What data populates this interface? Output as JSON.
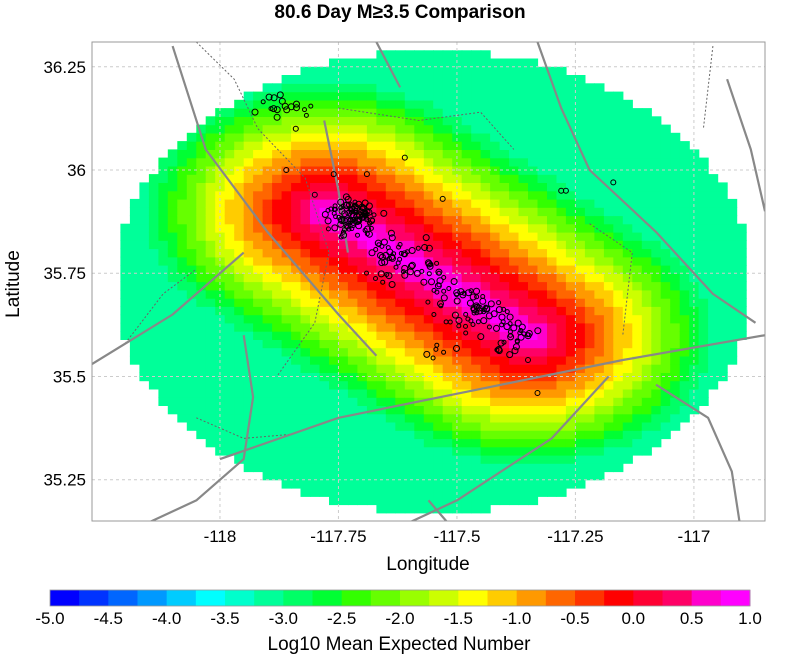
{
  "chart_data": {
    "type": "heatmap",
    "title": "80.6 Day M≥3.5 Comparison",
    "xlabel": "Longitude",
    "ylabel": "Latitude",
    "xlim": [
      -118.27,
      -116.85
    ],
    "ylim": [
      35.15,
      36.31
    ],
    "xticks": [
      -118,
      -117.75,
      -117.5,
      -117.25,
      -117
    ],
    "xtick_labels": [
      "-118",
      "-117.75",
      "-117.5",
      "-117.25",
      "-117"
    ],
    "yticks": [
      35.25,
      35.5,
      35.75,
      36,
      36.25
    ],
    "ytick_labels": [
      "35.25",
      "35.5",
      "35.75",
      "36",
      "36.25"
    ],
    "grid": true,
    "colorbar": {
      "label": "Log10 Mean Expected Number",
      "range": [
        -5.0,
        1.0
      ],
      "tick_values": [
        -5.0,
        -4.5,
        -4.0,
        -3.5,
        -3.0,
        -2.5,
        -2.0,
        -1.5,
        -1.0,
        -0.5,
        0.0,
        0.5,
        1.0
      ],
      "tick_labels": [
        "-5.0",
        "-4.5",
        "-4.0",
        "-3.5",
        "-3.0",
        "-2.5",
        "-2.0",
        "-1.5",
        "-1.0",
        "-0.5",
        "0.0",
        "0.5",
        "1.0"
      ],
      "colors": [
        "#0000ff",
        "#0033ff",
        "#0066ff",
        "#0099ff",
        "#00ccff",
        "#00ffff",
        "#00ffcc",
        "#00ff99",
        "#00ff66",
        "#00ff33",
        "#33ff00",
        "#66ff00",
        "#99ff00",
        "#ccff00",
        "#ffff00",
        "#ffcc00",
        "#ff9900",
        "#ff6600",
        "#ff3300",
        "#ff0000",
        "#ff0033",
        "#ff0066",
        "#ff00cc",
        "#ff00ff"
      ]
    },
    "forecast_region": {
      "center": [
        -117.55,
        35.73
      ],
      "radius_x_deg": 0.67,
      "radius_y_deg": 0.56
    },
    "rupture_trace": [
      [
        -117.77,
        35.9
      ],
      [
        -117.35,
        35.6
      ]
    ],
    "earthquakes_marker": "open black circle",
    "earthquake_clusters": [
      {
        "lon": -117.72,
        "lat": 35.89,
        "n": 80,
        "spread": 0.025
      },
      {
        "lon": -117.62,
        "lat": 35.78,
        "n": 40,
        "spread": 0.04
      },
      {
        "lon": -117.48,
        "lat": 35.66,
        "n": 40,
        "spread": 0.04
      },
      {
        "lon": -117.39,
        "lat": 35.59,
        "n": 20,
        "spread": 0.03
      },
      {
        "lon": -117.88,
        "lat": 36.15,
        "n": 18,
        "spread": 0.03
      },
      {
        "lon": -117.53,
        "lat": 35.56,
        "n": 6,
        "spread": 0.02
      }
    ],
    "earthquakes_isolated": [
      [
        -117.69,
        35.99
      ],
      [
        -117.76,
        35.99
      ],
      [
        -117.8,
        35.94
      ],
      [
        -117.53,
        35.93
      ],
      [
        -117.28,
        35.95
      ],
      [
        -117.27,
        35.95
      ],
      [
        -117.17,
        35.97
      ],
      [
        -117.33,
        35.46
      ],
      [
        -117.35,
        35.54
      ],
      [
        -117.61,
        36.03
      ],
      [
        -117.84,
        36.1
      ],
      [
        -117.86,
        36.0
      ]
    ],
    "fault_lines": [
      [
        [
          -118.1,
          36.3
        ],
        [
          -118.03,
          36.05
        ],
        [
          -117.9,
          35.85
        ],
        [
          -117.75,
          35.65
        ],
        [
          -117.67,
          35.55
        ]
      ],
      [
        [
          -117.78,
          36.12
        ],
        [
          -117.75,
          35.95
        ],
        [
          -117.73,
          35.8
        ]
      ],
      [
        [
          -117.33,
          36.31
        ],
        [
          -117.28,
          36.15
        ],
        [
          -117.22,
          36.0
        ],
        [
          -117.08,
          35.85
        ],
        [
          -116.96,
          35.7
        ],
        [
          -116.87,
          35.63
        ]
      ],
      [
        [
          -118.0,
          35.3
        ],
        [
          -117.75,
          35.4
        ],
        [
          -117.45,
          35.47
        ],
        [
          -117.15,
          35.54
        ],
        [
          -116.85,
          35.6
        ]
      ],
      [
        [
          -118.27,
          35.53
        ],
        [
          -118.1,
          35.65
        ],
        [
          -117.95,
          35.8
        ]
      ],
      [
        [
          -117.65,
          35.12
        ],
        [
          -117.5,
          35.2
        ],
        [
          -117.3,
          35.35
        ],
        [
          -117.18,
          35.5
        ]
      ],
      [
        [
          -117.08,
          35.48
        ],
        [
          -116.97,
          35.4
        ],
        [
          -116.92,
          35.27
        ],
        [
          -116.9,
          35.12
        ]
      ],
      [
        [
          -118.2,
          35.12
        ],
        [
          -118.05,
          35.2
        ],
        [
          -117.95,
          35.3
        ],
        [
          -117.93,
          35.45
        ],
        [
          -117.95,
          35.6
        ]
      ],
      [
        [
          -116.93,
          36.22
        ],
        [
          -116.88,
          36.05
        ],
        [
          -116.85,
          35.9
        ]
      ],
      [
        [
          -117.56,
          35.2
        ],
        [
          -117.5,
          35.12
        ]
      ],
      [
        [
          -117.67,
          36.31
        ],
        [
          -117.62,
          36.2
        ]
      ]
    ],
    "boundary_lines": [
      [
        [
          -118.05,
          36.31
        ],
        [
          -117.97,
          36.22
        ],
        [
          -117.92,
          36.1
        ],
        [
          -117.82,
          35.98
        ],
        [
          -117.77,
          35.8
        ],
        [
          -117.8,
          35.63
        ],
        [
          -117.88,
          35.5
        ]
      ],
      [
        [
          -117.75,
          36.15
        ],
        [
          -117.58,
          36.12
        ],
        [
          -117.45,
          36.14
        ],
        [
          -117.38,
          36.05
        ]
      ],
      [
        [
          -118.2,
          35.58
        ],
        [
          -118.12,
          35.7
        ],
        [
          -118.05,
          35.76
        ]
      ],
      [
        [
          -117.22,
          35.87
        ],
        [
          -117.13,
          35.8
        ],
        [
          -117.15,
          35.6
        ]
      ],
      [
        [
          -118.05,
          35.4
        ],
        [
          -117.95,
          35.35
        ],
        [
          -117.85,
          35.36
        ]
      ],
      [
        [
          -116.96,
          36.3
        ],
        [
          -116.98,
          36.1
        ]
      ]
    ]
  }
}
